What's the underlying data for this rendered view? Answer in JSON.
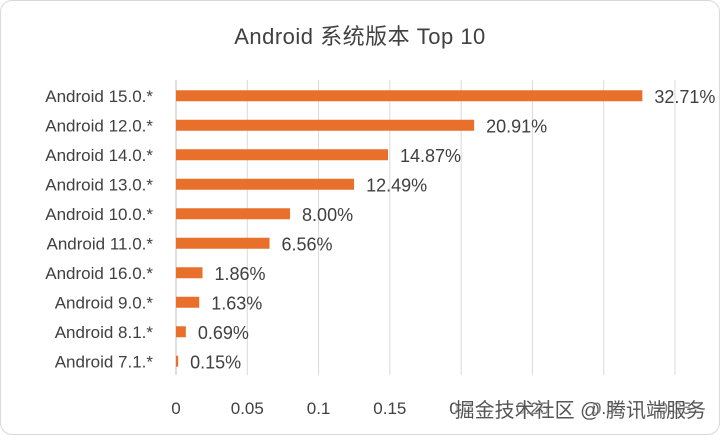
{
  "chart_data": {
    "type": "bar",
    "orientation": "horizontal",
    "title": "Android 系统版本 Top 10",
    "categories": [
      "Android 15.0.*",
      "Android 12.0.*",
      "Android 14.0.*",
      "Android 13.0.*",
      "Android 10.0.*",
      "Android 11.0.*",
      "Android 16.0.*",
      "Android 9.0.*",
      "Android 8.1.*",
      "Android 7.1.*"
    ],
    "values": [
      0.3271,
      0.2091,
      0.1487,
      0.1249,
      0.08,
      0.0656,
      0.0186,
      0.0163,
      0.0069,
      0.0015
    ],
    "data_labels": [
      "32.71%",
      "20.91%",
      "14.87%",
      "12.49%",
      "8.00%",
      "6.56%",
      "1.86%",
      "1.63%",
      "0.69%",
      "0.15%"
    ],
    "x_ticks": [
      0,
      0.05,
      0.1,
      0.15,
      0.2,
      0.25,
      0.3,
      0.35
    ],
    "x_tick_labels": [
      "0",
      "0.05",
      "0.1",
      "0.15",
      "0.2",
      "0.25",
      "0.3",
      "0.35"
    ],
    "xlim": [
      0,
      0.35
    ],
    "grid": "vertical",
    "bar_color": "#E8702A",
    "grid_color": "#d9d9d9"
  },
  "watermark": "掘金技术社区 @ 腾讯端服务"
}
